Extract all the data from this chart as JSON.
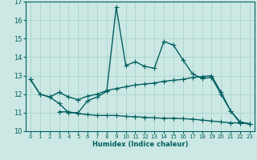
{
  "xlabel": "Humidex (Indice chaleur)",
  "background_color": "#cce8e4",
  "grid_color": "#aad4cf",
  "line_color": "#006060",
  "x_values": [
    0,
    1,
    2,
    3,
    4,
    5,
    6,
    7,
    8,
    9,
    10,
    11,
    12,
    13,
    14,
    15,
    16,
    17,
    18,
    19,
    20,
    21,
    22,
    23
  ],
  "line1": [
    12.8,
    12.0,
    11.85,
    11.5,
    11.0,
    11.0,
    11.65,
    11.85,
    12.15,
    16.7,
    13.55,
    13.75,
    13.5,
    13.4,
    14.85,
    14.65,
    13.85,
    13.1,
    12.85,
    12.9,
    12.0,
    11.1,
    10.45,
    10.4
  ],
  "line2": [
    12.8,
    12.0,
    11.85,
    12.1,
    11.85,
    11.7,
    11.9,
    12.0,
    12.2,
    12.3,
    12.4,
    12.5,
    12.55,
    12.6,
    12.7,
    12.75,
    12.8,
    12.9,
    12.95,
    13.0,
    12.1,
    11.1,
    10.5,
    10.4
  ],
  "line3": [
    null,
    null,
    null,
    11.05,
    11.05,
    10.95,
    10.9,
    10.85,
    10.85,
    10.85,
    10.8,
    10.78,
    10.75,
    10.72,
    10.7,
    10.7,
    10.68,
    10.65,
    10.6,
    10.55,
    10.5,
    10.45,
    10.45,
    10.4
  ],
  "ylim": [
    10,
    17
  ],
  "xlim": [
    -0.5,
    23.5
  ],
  "yticks": [
    10,
    11,
    12,
    13,
    14,
    15,
    16,
    17
  ],
  "xticks": [
    0,
    1,
    2,
    3,
    4,
    5,
    6,
    7,
    8,
    9,
    10,
    11,
    12,
    13,
    14,
    15,
    16,
    17,
    18,
    19,
    20,
    21,
    22,
    23
  ],
  "marker": "+",
  "linewidth": 1.0,
  "markersize": 4
}
